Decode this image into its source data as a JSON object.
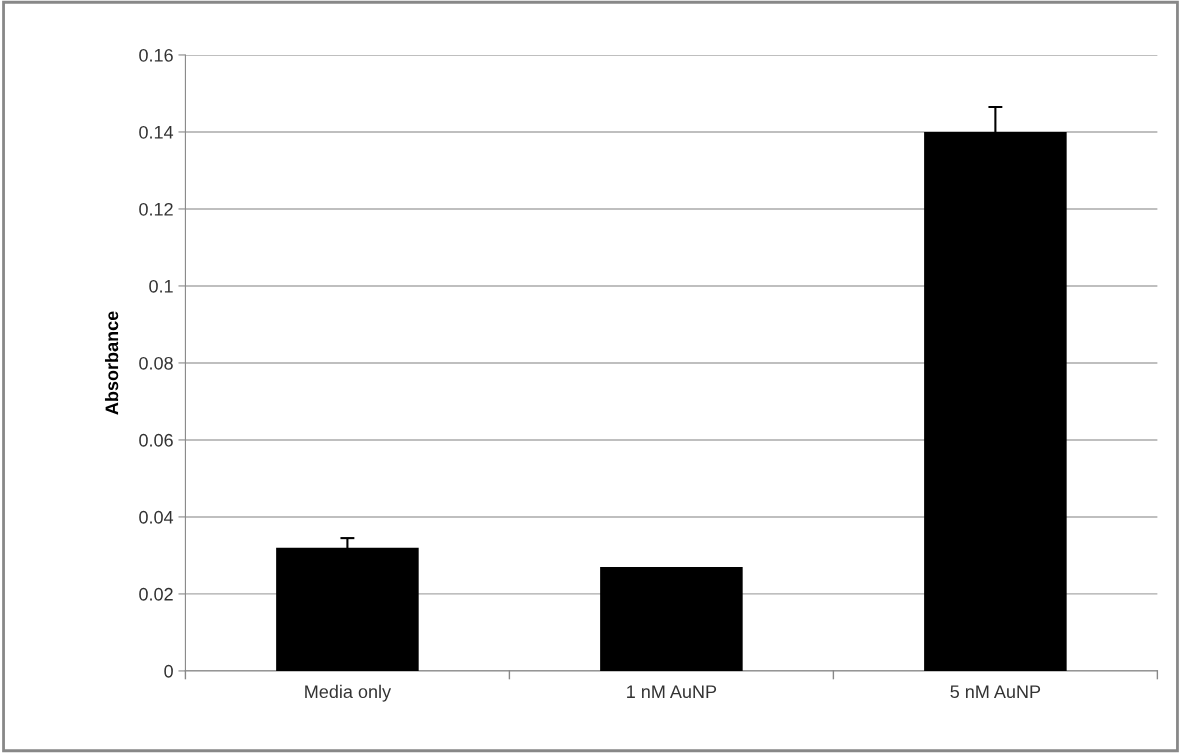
{
  "chart_data": {
    "type": "bar",
    "ylabel": "Absorbance",
    "categories": [
      "Media only",
      "1 nM AuNP",
      "5 nM AuNP"
    ],
    "values": [
      0.032,
      0.027,
      0.14
    ],
    "errors": [
      0.0025,
      null,
      0.0065
    ],
    "color": "#000000",
    "ylim": [
      0,
      0.16
    ],
    "yticks": [
      0,
      0.02,
      0.04,
      0.06,
      0.08,
      0.1,
      0.12,
      0.14,
      0.16
    ],
    "grid": "y",
    "legend": false
  }
}
